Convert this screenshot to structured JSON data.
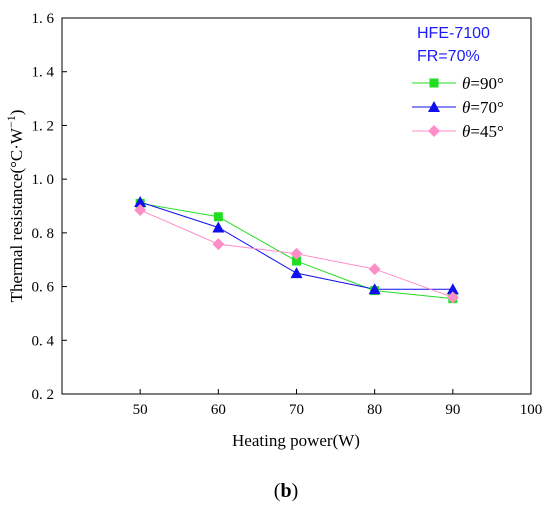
{
  "chart_data": {
    "type": "line",
    "xlabel": "Heating power(W)",
    "ylabel": "Thermal resistance(°C·W",
    "ylabel_sup": "−1",
    "ylabel_close": ")",
    "xlim": [
      40,
      100
    ],
    "ylim": [
      0.2,
      1.6
    ],
    "x_ticks": [
      50,
      60,
      70,
      80,
      90,
      100
    ],
    "x_tick_labels": [
      "50",
      "60",
      "70",
      "80",
      "90",
      "100"
    ],
    "y_ticks": [
      0.2,
      0.4,
      0.6,
      0.8,
      1.0,
      1.2,
      1.4,
      1.6
    ],
    "y_tick_labels": [
      "0. 2",
      "0. 4",
      "0. 6",
      "0. 8",
      "1. 0",
      "1. 2",
      "1. 4",
      "1. 6"
    ],
    "grid": false,
    "legend_position": "top-right",
    "annotations": [
      "HFE-7100",
      "FR=70%"
    ],
    "annotation_color": "#1a1aff",
    "panel_label": "(b)",
    "series": [
      {
        "name": "=90°",
        "symbol": "θ",
        "marker": "square",
        "color": "#22dd22",
        "x": [
          50,
          60,
          70,
          80,
          90
        ],
        "y": [
          0.91,
          0.86,
          0.695,
          0.585,
          0.555
        ]
      },
      {
        "name": "=70°",
        "symbol": "θ",
        "marker": "triangle",
        "color": "#1010ee",
        "x": [
          50,
          60,
          70,
          80,
          90
        ],
        "y": [
          0.915,
          0.82,
          0.65,
          0.59,
          0.59
        ]
      },
      {
        "name": "=45°",
        "symbol": "θ",
        "marker": "diamond",
        "color": "#ff8ec8",
        "x": [
          50,
          60,
          70,
          80,
          90
        ],
        "y": [
          0.885,
          0.758,
          0.722,
          0.665,
          0.56
        ]
      }
    ]
  }
}
